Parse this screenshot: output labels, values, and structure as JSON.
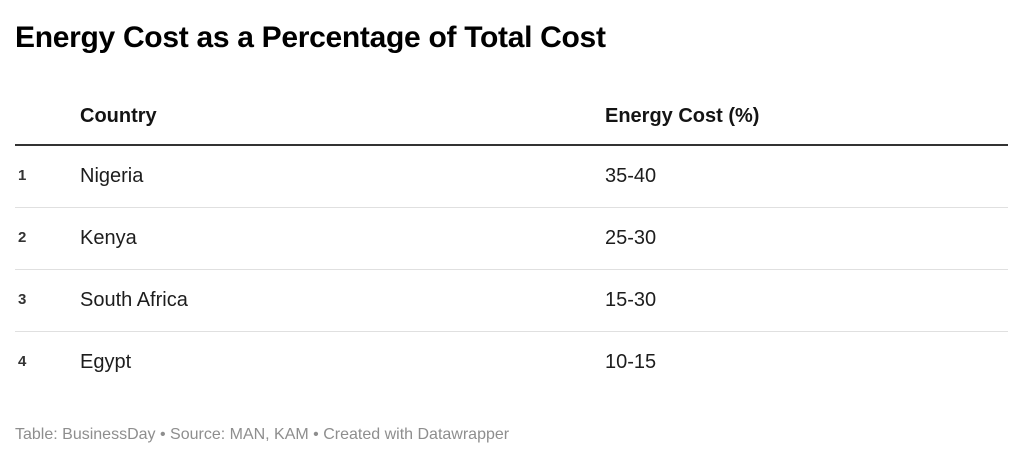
{
  "page": {
    "title": "Energy Cost as a Percentage of Total Cost"
  },
  "table": {
    "columns": {
      "rank": "",
      "country": "Country",
      "energy_cost": "Energy Cost (%)"
    },
    "rows": [
      {
        "rank": "1",
        "country": "Nigeria",
        "energy_cost": "35-40"
      },
      {
        "rank": "2",
        "country": "Kenya",
        "energy_cost": "25-30"
      },
      {
        "rank": "3",
        "country": "South Africa",
        "energy_cost": "15-30"
      },
      {
        "rank": "4",
        "country": "Egypt",
        "energy_cost": "10-15"
      }
    ]
  },
  "footer": {
    "table_label": "Table: ",
    "table_credit": "BusinessDay",
    "separator1": " • ",
    "source_label": "Source: ",
    "source_credit": "MAN, KAM",
    "separator2": " • ",
    "created_with": "Created with Datawrapper"
  },
  "colors": {
    "title_text": "#000000",
    "header_text": "#141414",
    "body_text": "#1d1d1d",
    "rank_text": "#333333",
    "header_rule": "#333333",
    "row_separator": "#e0e0e0",
    "footer_text": "#8e8e8e",
    "background": "#ffffff"
  },
  "chart_data": {
    "type": "table",
    "title": "Energy Cost as a Percentage of Total Cost",
    "columns": [
      "Country",
      "Energy Cost (%)"
    ],
    "rows": [
      [
        "Nigeria",
        "35-40"
      ],
      [
        "Kenya",
        "25-30"
      ],
      [
        "South Africa",
        "15-30"
      ],
      [
        "Egypt",
        "10-15"
      ]
    ],
    "row_numbers": [
      1,
      2,
      3,
      4
    ],
    "notes": "Table: BusinessDay • Source: MAN, KAM • Created with Datawrapper",
    "layout": {
      "grid": "horizontal-rules-only",
      "header_rule": "2px dark",
      "zebra": false
    }
  }
}
